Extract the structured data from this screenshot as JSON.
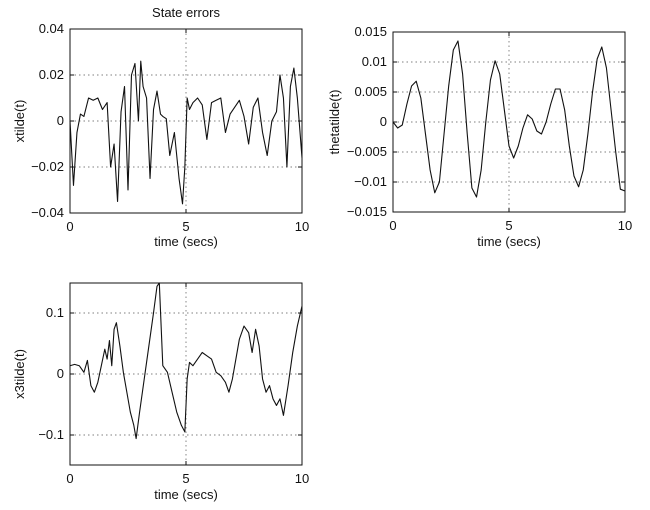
{
  "chart_data": [
    {
      "type": "line",
      "title": "State errors",
      "xlabel": "time (secs)",
      "ylabel": "xtilde(t)",
      "xlim": [
        0,
        10
      ],
      "ylim": [
        -0.04,
        0.04
      ],
      "xticks": [
        0,
        5,
        10
      ],
      "xtick_labels": [
        "0",
        "5",
        "10"
      ],
      "yticks": [
        -0.04,
        -0.02,
        0,
        0.02,
        0.04
      ],
      "ytick_labels": [
        "−0.04",
        "−0.02",
        "0",
        "0.02",
        "0.04"
      ],
      "grid": true,
      "series": [
        {
          "x": [
            0,
            0.15,
            0.3,
            0.45,
            0.6,
            0.8,
            1.0,
            1.2,
            1.4,
            1.6,
            1.75,
            1.9,
            2.05,
            2.2,
            2.35,
            2.5,
            2.65,
            2.8,
            2.95,
            3.05,
            3.15,
            3.3,
            3.45,
            3.6,
            3.75,
            3.9,
            4.0,
            4.15,
            4.3,
            4.5,
            4.7,
            4.85,
            4.95,
            5.05,
            5.15,
            5.3,
            5.5,
            5.7,
            5.9,
            6.1,
            6.3,
            6.5,
            6.7,
            6.9,
            7.1,
            7.3,
            7.5,
            7.7,
            7.9,
            8.1,
            8.3,
            8.5,
            8.7,
            8.9,
            9.05,
            9.2,
            9.35,
            9.5,
            9.65,
            9.8,
            10.0
          ],
          "y": [
            0,
            -0.028,
            -0.005,
            0.003,
            0.002,
            0.01,
            0.009,
            0.01,
            0.005,
            0.008,
            -0.02,
            -0.01,
            -0.035,
            0.004,
            0.015,
            -0.03,
            0.02,
            0.025,
            0.0,
            0.026,
            0.015,
            0.01,
            -0.025,
            0.005,
            0.013,
            0.003,
            0.002,
            0.001,
            -0.015,
            -0.005,
            -0.025,
            -0.036,
            -0.02,
            0.01,
            0.005,
            0.008,
            0.01,
            0.007,
            -0.008,
            0.008,
            0.009,
            0.01,
            -0.005,
            0.003,
            0.006,
            0.009,
            0.002,
            -0.01,
            0.006,
            0.01,
            -0.005,
            -0.015,
            0.0,
            0.004,
            0.02,
            0.01,
            -0.02,
            0.015,
            0.023,
            0.01,
            -0.016
          ]
        }
      ]
    },
    {
      "type": "line",
      "xlabel": "time (secs)",
      "ylabel": "thetatilde(t)",
      "xlim": [
        0,
        10
      ],
      "ylim": [
        -0.015,
        0.015
      ],
      "xticks": [
        0,
        5,
        10
      ],
      "xtick_labels": [
        "0",
        "5",
        "10"
      ],
      "yticks": [
        -0.015,
        -0.01,
        -0.005,
        0,
        0.005,
        0.01,
        0.015
      ],
      "ytick_labels": [
        "−0.015",
        "−0.01",
        "−0.005",
        "0",
        "0.005",
        "0.01",
        "0.015"
      ],
      "grid": true,
      "series": [
        {
          "x": [
            0,
            0.2,
            0.4,
            0.6,
            0.8,
            1.0,
            1.2,
            1.4,
            1.6,
            1.8,
            2.0,
            2.2,
            2.4,
            2.6,
            2.8,
            3.0,
            3.2,
            3.4,
            3.6,
            3.8,
            4.0,
            4.2,
            4.4,
            4.6,
            4.8,
            5.0,
            5.2,
            5.4,
            5.6,
            5.8,
            6.0,
            6.2,
            6.4,
            6.6,
            6.8,
            7.0,
            7.2,
            7.4,
            7.6,
            7.8,
            8.0,
            8.2,
            8.4,
            8.6,
            8.8,
            9.0,
            9.2,
            9.4,
            9.6,
            9.8,
            10.0
          ],
          "y": [
            0,
            -0.001,
            -0.0005,
            0.003,
            0.006,
            0.0068,
            0.004,
            -0.002,
            -0.008,
            -0.0118,
            -0.01,
            -0.002,
            0.006,
            0.012,
            0.0135,
            0.008,
            -0.002,
            -0.011,
            -0.0125,
            -0.008,
            0.0,
            0.007,
            0.0102,
            0.008,
            0.002,
            -0.004,
            -0.006,
            -0.004,
            -0.001,
            0.0012,
            0.0005,
            -0.0015,
            -0.002,
            0.0,
            0.003,
            0.0055,
            0.0055,
            0.002,
            -0.004,
            -0.009,
            -0.0108,
            -0.008,
            -0.002,
            0.005,
            0.0105,
            0.0125,
            0.009,
            0.002,
            -0.005,
            -0.0112,
            -0.0115
          ]
        }
      ]
    },
    {
      "type": "line",
      "xlabel": "time (secs)",
      "ylabel": "x3tilde(t)",
      "xlim": [
        0,
        10
      ],
      "ylim": [
        -0.15,
        0.125
      ],
      "xticks": [
        0,
        5,
        10
      ],
      "xtick_labels": [
        "0",
        "5",
        "10"
      ],
      "yticks": [
        -0.1,
        0,
        0.1
      ],
      "ytick_labels": [
        "−0.1",
        "0",
        "0.1"
      ],
      "grid": true,
      "series": [
        {
          "x": [
            0,
            0.2,
            0.4,
            0.6,
            0.75,
            0.9,
            1.05,
            1.2,
            1.35,
            1.5,
            1.6,
            1.7,
            1.8,
            1.9,
            2.0,
            2.15,
            2.3,
            2.45,
            2.6,
            2.75,
            2.85,
            3.0,
            3.2,
            3.4,
            3.6,
            3.75,
            3.85,
            4.0,
            4.2,
            4.4,
            4.6,
            4.8,
            4.95,
            5.05,
            5.15,
            5.3,
            5.5,
            5.7,
            5.9,
            6.1,
            6.3,
            6.5,
            6.7,
            6.85,
            7.0,
            7.15,
            7.3,
            7.5,
            7.7,
            7.85,
            8.0,
            8.15,
            8.3,
            8.45,
            8.6,
            8.75,
            8.9,
            9.05,
            9.2,
            9.4,
            9.6,
            9.8,
            10.0
          ],
          "y": [
            0,
            0.002,
            0.0,
            -0.01,
            0.008,
            -0.03,
            -0.04,
            -0.025,
            0.0,
            0.025,
            0.01,
            0.038,
            0.0,
            0.055,
            0.065,
            0.03,
            -0.01,
            -0.04,
            -0.07,
            -0.09,
            -0.11,
            -0.07,
            -0.02,
            0.03,
            0.08,
            0.12,
            0.125,
            0.0,
            -0.01,
            -0.04,
            -0.07,
            -0.09,
            -0.1,
            -0.02,
            0.005,
            0.0,
            0.01,
            0.02,
            0.015,
            0.01,
            -0.01,
            -0.015,
            -0.025,
            -0.04,
            -0.02,
            0.01,
            0.04,
            0.06,
            0.05,
            0.02,
            0.055,
            0.03,
            -0.02,
            -0.04,
            -0.03,
            -0.05,
            -0.06,
            -0.05,
            -0.075,
            -0.03,
            0.02,
            0.06,
            0.09
          ]
        }
      ]
    }
  ]
}
